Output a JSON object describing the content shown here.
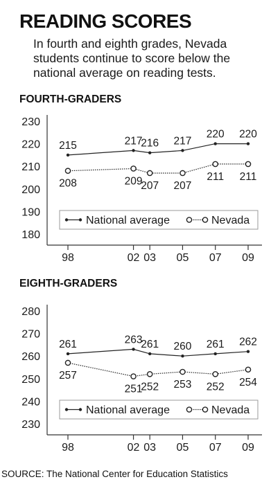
{
  "headline": "READING SCORES",
  "subhead": "In fourth and eighth grades, Nevada students continue to score below the national average on reading tests.",
  "source": "SOURCE: The National Center for Education Statistics",
  "colors": {
    "text": "#1a1a1a",
    "frame": "#333333",
    "legend_border": "#999999"
  },
  "chart_data": [
    {
      "type": "line",
      "title": "FOURTH-GRADERS",
      "x": [
        "98",
        "02",
        "03",
        "05",
        "07",
        "09"
      ],
      "x_years": [
        1998,
        2002,
        2003,
        2005,
        2007,
        2009
      ],
      "ylim": [
        180,
        230
      ],
      "yticks": [
        180,
        190,
        200,
        210,
        220,
        230
      ],
      "grid": false,
      "legend": "bottom",
      "series": [
        {
          "name": "National average",
          "values": [
            215,
            217,
            216,
            217,
            220,
            220
          ],
          "marker": "filled"
        },
        {
          "name": "Nevada",
          "values": [
            208,
            209,
            207,
            207,
            211,
            211
          ],
          "marker": "open"
        }
      ]
    },
    {
      "type": "line",
      "title": "EIGHTH-GRADERS",
      "x": [
        "98",
        "02",
        "03",
        "05",
        "07",
        "09"
      ],
      "x_years": [
        1998,
        2002,
        2003,
        2005,
        2007,
        2009
      ],
      "ylim": [
        230,
        280
      ],
      "yticks": [
        230,
        240,
        250,
        260,
        270,
        280
      ],
      "grid": false,
      "legend": "bottom",
      "series": [
        {
          "name": "National average",
          "values": [
            261,
            263,
            261,
            260,
            261,
            262
          ],
          "marker": "filled"
        },
        {
          "name": "Nevada",
          "values": [
            257,
            251,
            252,
            253,
            252,
            254
          ],
          "marker": "open"
        }
      ]
    }
  ]
}
